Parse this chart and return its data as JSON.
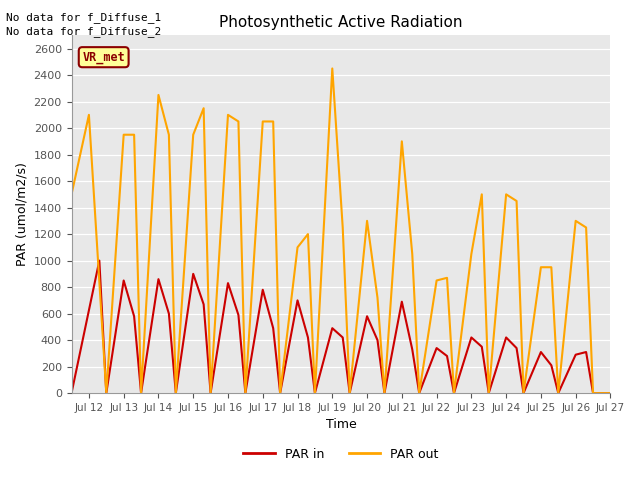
{
  "title": "Photosynthetic Active Radiation",
  "xlabel": "Time",
  "ylabel": "PAR (umol/m2/s)",
  "ylim": [
    0,
    2700
  ],
  "yticks": [
    0,
    200,
    400,
    600,
    800,
    1000,
    1200,
    1400,
    1600,
    1800,
    2000,
    2200,
    2400,
    2600
  ],
  "annotation_text1": "No data for f_Diffuse_1",
  "annotation_text2": "No data for f_Diffuse_2",
  "legend_label": "VR_met",
  "legend_box_color": "#FFFF99",
  "legend_box_border": "#8B0000",
  "par_in_color": "#CC0000",
  "par_out_color": "#FFA500",
  "background_color": "#E8E8E8",
  "xlim": [
    11.5,
    27.0
  ],
  "x_par_in": [
    11.5,
    12.3,
    12.5,
    13.0,
    13.3,
    13.5,
    14.0,
    14.3,
    14.5,
    15.0,
    15.3,
    15.5,
    16.0,
    16.3,
    16.5,
    17.0,
    17.3,
    17.5,
    18.0,
    18.3,
    18.5,
    19.0,
    19.3,
    19.5,
    20.0,
    20.3,
    20.5,
    21.0,
    21.3,
    21.5,
    22.0,
    22.3,
    22.5,
    23.0,
    23.3,
    23.5,
    24.0,
    24.3,
    24.5,
    25.0,
    25.3,
    25.5,
    26.0,
    26.3,
    26.5,
    27.0
  ],
  "y_par_in": [
    0,
    1000,
    0,
    850,
    580,
    0,
    860,
    600,
    0,
    900,
    670,
    0,
    830,
    590,
    0,
    780,
    490,
    0,
    700,
    420,
    0,
    490,
    420,
    0,
    580,
    400,
    0,
    690,
    330,
    0,
    340,
    280,
    0,
    420,
    350,
    0,
    420,
    340,
    0,
    310,
    210,
    0,
    290,
    310,
    0,
    0
  ],
  "x_par_out": [
    11.5,
    12.0,
    12.5,
    13.0,
    13.3,
    13.5,
    14.0,
    14.3,
    14.5,
    15.0,
    15.3,
    15.5,
    16.0,
    16.3,
    16.5,
    17.0,
    17.3,
    17.5,
    18.0,
    18.3,
    18.5,
    19.0,
    19.3,
    19.5,
    20.0,
    20.3,
    20.5,
    21.0,
    21.3,
    21.5,
    22.0,
    22.3,
    22.5,
    23.0,
    23.3,
    23.5,
    24.0,
    24.3,
    24.5,
    25.0,
    25.3,
    25.5,
    26.0,
    26.3,
    26.5,
    27.0
  ],
  "y_par_out": [
    1500,
    2100,
    0,
    1950,
    1950,
    0,
    2250,
    1950,
    0,
    1950,
    2150,
    0,
    2100,
    2050,
    0,
    2050,
    2050,
    0,
    1100,
    1200,
    0,
    2450,
    1250,
    0,
    1300,
    720,
    0,
    1900,
    1050,
    0,
    850,
    870,
    0,
    1050,
    1500,
    0,
    1500,
    1450,
    0,
    950,
    950,
    0,
    1300,
    1250,
    0,
    0
  ]
}
